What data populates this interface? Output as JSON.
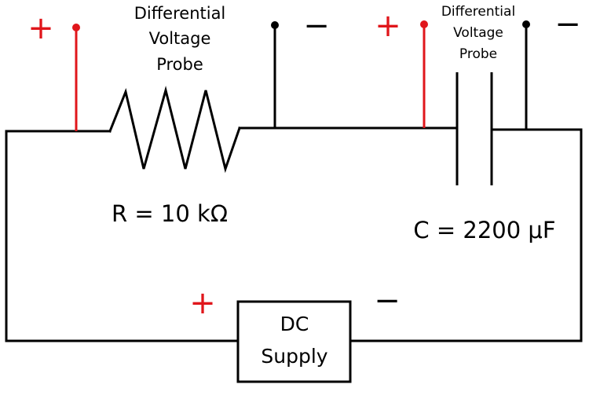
{
  "probe_left": {
    "label_lines": [
      "Differential",
      "Voltage",
      "Probe"
    ],
    "plus": "+",
    "minus": "−"
  },
  "probe_right": {
    "label_lines": [
      "Differential",
      "Voltage",
      "Probe"
    ],
    "plus": "+",
    "minus": "−"
  },
  "resistor": {
    "label": "R = 10 kΩ"
  },
  "capacitor": {
    "label": "C = 2200 μF"
  },
  "supply": {
    "label_lines": [
      "DC",
      "Supply"
    ],
    "plus": "+",
    "minus": "−"
  },
  "colors": {
    "positive": "#e0161b",
    "negative": "#000000",
    "wire": "#000000"
  }
}
